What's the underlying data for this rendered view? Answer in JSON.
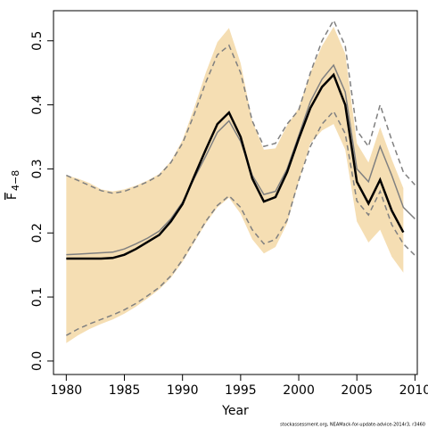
{
  "chart_data": {
    "type": "line",
    "xlabel": "Year",
    "ylabel": "F",
    "ylabel_sub": "4−8",
    "footnote": "stockassessment.org, NEAMack-for-update-advice-2014r3, r3460",
    "x": [
      1980,
      1981,
      1982,
      1983,
      1984,
      1985,
      1986,
      1987,
      1988,
      1989,
      1990,
      1991,
      1992,
      1993,
      1994,
      1995,
      1996,
      1997,
      1998,
      1999,
      2000,
      2001,
      2002,
      2003,
      2004,
      2005,
      2006,
      2007,
      2008,
      2009,
      2010
    ],
    "series": [
      {
        "kind": "band",
        "color": "#f5deb3",
        "values": [
          0.29,
          0.285,
          0.278,
          0.268,
          0.265,
          0.268,
          0.274,
          0.282,
          0.292,
          0.312,
          0.345,
          0.395,
          0.45,
          0.498,
          0.52,
          0.465,
          0.375,
          0.33,
          0.332,
          0.368,
          0.395,
          0.45,
          0.492,
          0.522,
          0.48,
          0.34,
          0.31,
          0.365,
          0.315,
          0.27,
          null
        ],
        "lower": [
          0.028,
          0.04,
          0.05,
          0.058,
          0.065,
          0.074,
          0.085,
          0.098,
          0.112,
          0.13,
          0.155,
          0.185,
          0.215,
          0.24,
          0.255,
          0.23,
          0.19,
          0.168,
          0.178,
          0.215,
          0.28,
          0.34,
          0.36,
          0.37,
          0.33,
          0.218,
          0.185,
          0.205,
          0.163,
          0.138,
          null
        ]
      },
      {
        "kind": "line",
        "color": "#808080",
        "dash": true,
        "width": 1.5,
        "values": [
          0.29,
          0.282,
          0.274,
          0.266,
          0.262,
          0.265,
          0.272,
          0.28,
          0.29,
          0.31,
          0.34,
          0.385,
          0.435,
          0.478,
          0.493,
          0.45,
          0.375,
          0.335,
          0.34,
          0.37,
          0.392,
          0.45,
          0.5,
          0.532,
          0.492,
          0.36,
          0.335,
          0.4,
          0.345,
          0.295,
          0.275
        ]
      },
      {
        "kind": "line",
        "color": "#808080",
        "dash": true,
        "width": 1.5,
        "values": [
          0.04,
          0.05,
          0.058,
          0.065,
          0.072,
          0.08,
          0.09,
          0.102,
          0.115,
          0.133,
          0.158,
          0.188,
          0.218,
          0.243,
          0.258,
          0.24,
          0.205,
          0.183,
          0.19,
          0.22,
          0.282,
          0.335,
          0.37,
          0.39,
          0.355,
          0.25,
          0.228,
          0.265,
          0.213,
          0.183,
          0.165
        ]
      },
      {
        "kind": "line",
        "color": "#808080",
        "dash": false,
        "width": 1.5,
        "values": [
          0.166,
          0.167,
          0.168,
          0.169,
          0.17,
          0.175,
          0.183,
          0.192,
          0.203,
          0.222,
          0.248,
          0.285,
          0.32,
          0.357,
          0.375,
          0.343,
          0.29,
          0.26,
          0.265,
          0.3,
          0.352,
          0.405,
          0.44,
          0.462,
          0.42,
          0.3,
          0.28,
          0.335,
          0.29,
          0.24,
          0.222
        ]
      },
      {
        "kind": "line",
        "color": "#000000",
        "dash": false,
        "width": 2.5,
        "values": [
          0.16,
          0.16,
          0.16,
          0.16,
          0.161,
          0.166,
          0.175,
          0.186,
          0.197,
          0.218,
          0.245,
          0.288,
          0.33,
          0.37,
          0.388,
          0.35,
          0.285,
          0.249,
          0.256,
          0.295,
          0.347,
          0.395,
          0.428,
          0.447,
          0.4,
          0.28,
          0.246,
          0.283,
          0.235,
          0.201,
          null
        ]
      }
    ],
    "xlim": [
      1978.9,
      2010.2
    ],
    "ylim": [
      -0.021,
      0.547
    ],
    "xticks": [
      1980,
      1985,
      1990,
      1995,
      2000,
      2005,
      2010
    ],
    "yticks": [
      {
        "value": 0,
        "label": "0.0"
      },
      0.1,
      0.2,
      0.3,
      0.4,
      0.5
    ]
  }
}
